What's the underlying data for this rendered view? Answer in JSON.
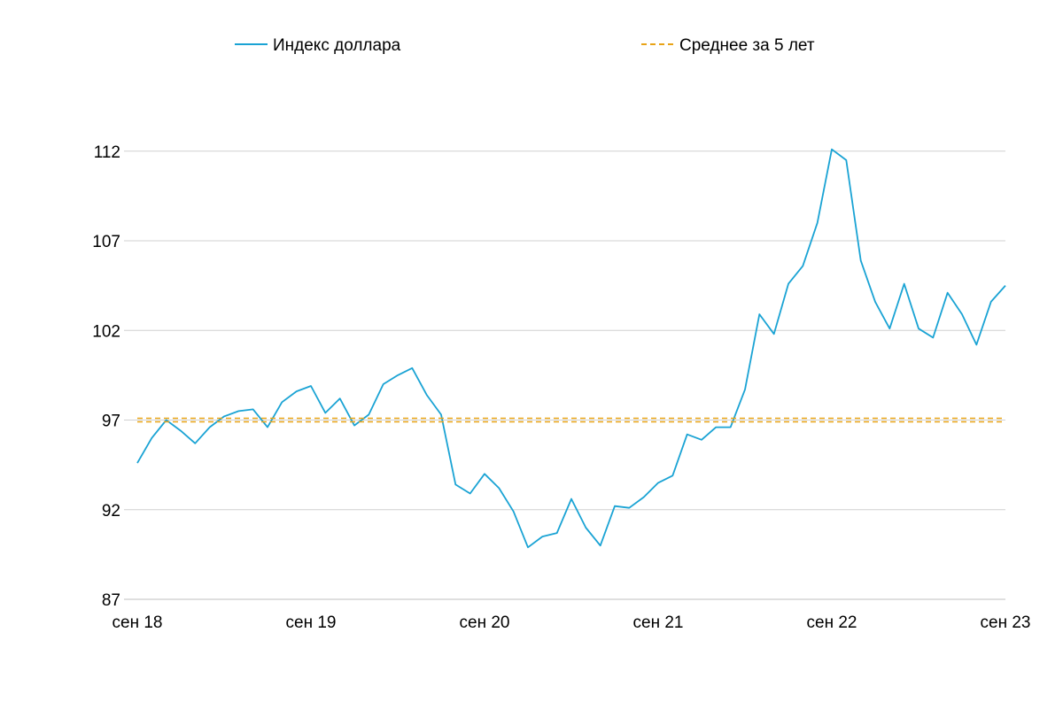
{
  "chart_data": {
    "type": "line",
    "title": "",
    "xlabel": "",
    "ylabel": "",
    "x_tick_labels": [
      "сен 18",
      "сен 19",
      "сен 20",
      "сен 21",
      "сен 22",
      "сен 23"
    ],
    "y_ticks": [
      87,
      92,
      97,
      102,
      107,
      112
    ],
    "ylim": [
      87,
      115
    ],
    "xlim": [
      "2018-09",
      "2023-09"
    ],
    "grid": {
      "horizontal": true,
      "vertical": false
    },
    "legend_position": "top",
    "series": [
      {
        "name": "Индекс доллара",
        "style": "solid",
        "color": "#1aa3d4",
        "x": [
          "2018-09",
          "2018-10",
          "2018-11",
          "2018-12",
          "2019-01",
          "2019-02",
          "2019-03",
          "2019-04",
          "2019-05",
          "2019-06",
          "2019-07",
          "2019-08",
          "2019-09",
          "2019-10",
          "2019-11",
          "2019-12",
          "2020-01",
          "2020-02",
          "2020-03",
          "2020-04",
          "2020-05",
          "2020-06",
          "2020-07",
          "2020-08",
          "2020-09",
          "2020-10",
          "2020-11",
          "2020-12",
          "2021-01",
          "2021-02",
          "2021-03",
          "2021-04",
          "2021-05",
          "2021-06",
          "2021-07",
          "2021-08",
          "2021-09",
          "2021-10",
          "2021-11",
          "2021-12",
          "2022-01",
          "2022-02",
          "2022-03",
          "2022-04",
          "2022-05",
          "2022-06",
          "2022-07",
          "2022-08",
          "2022-09",
          "2022-10",
          "2022-11",
          "2022-12",
          "2023-01",
          "2023-02",
          "2023-03",
          "2023-04",
          "2023-05",
          "2023-06",
          "2023-07",
          "2023-08",
          "2023-09"
        ],
        "y": [
          94.6,
          96.0,
          97.0,
          96.4,
          95.7,
          96.6,
          97.2,
          97.5,
          97.6,
          96.6,
          98.0,
          98.6,
          98.9,
          97.4,
          98.2,
          96.7,
          97.3,
          99.0,
          99.5,
          99.9,
          98.4,
          97.3,
          93.4,
          92.9,
          94.0,
          93.2,
          91.9,
          89.9,
          90.5,
          90.7,
          92.6,
          91.0,
          90.0,
          92.2,
          92.1,
          92.7,
          93.5,
          93.9,
          96.2,
          95.9,
          96.6,
          96.6,
          98.7,
          102.9,
          101.8,
          104.6,
          105.6,
          108.0,
          112.1,
          111.5,
          105.9,
          103.6,
          102.1,
          104.6,
          102.1,
          101.6,
          104.1,
          102.9,
          101.2,
          103.6,
          104.5
        ]
      },
      {
        "name": "Среднее за 5 лет",
        "style": "dashed",
        "color": "#e8a317",
        "x": [
          "2018-09",
          "2023-09"
        ],
        "y": [
          97.1,
          97.1
        ]
      }
    ]
  }
}
